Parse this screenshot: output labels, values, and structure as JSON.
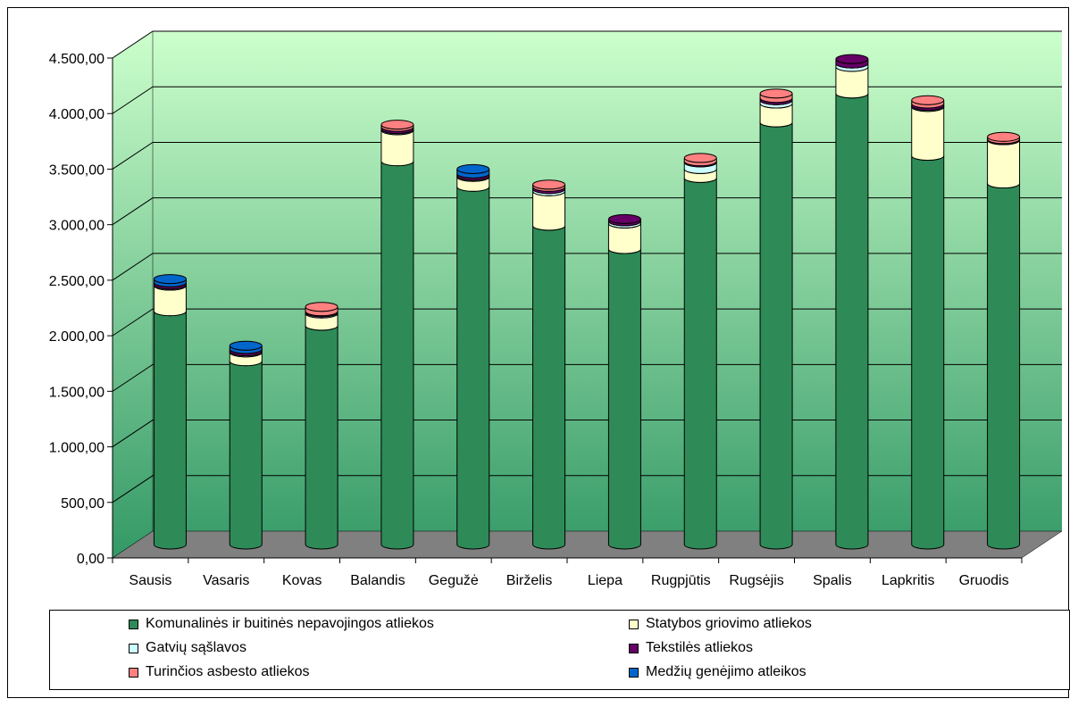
{
  "chart_data": {
    "type": "bar",
    "stacked": true,
    "three_d": true,
    "categories": [
      "Sausis",
      "Vasaris",
      "Kovas",
      "Balandis",
      "Gegužė",
      "Birželis",
      "Liepa",
      "Rugpjūtis",
      "Rugsėjis",
      "Spalis",
      "Lapkritis",
      "Gruodis"
    ],
    "series": [
      {
        "name": "Komunalinės ir buitinės nepavojingos atliekos",
        "color": "#2e8b57",
        "values": [
          2100,
          1650,
          1970,
          3450,
          3220,
          2870,
          2660,
          3300,
          3800,
          4060,
          3500,
          3250
        ]
      },
      {
        "name": "Statybos griovimo atliekos",
        "color": "#ffffcc",
        "values": [
          230,
          80,
          110,
          280,
          90,
          310,
          230,
          80,
          170,
          240,
          440,
          390
        ]
      },
      {
        "name": "Gatvių sąšlavos",
        "color": "#ccffff",
        "values": [
          10,
          10,
          10,
          10,
          10,
          20,
          20,
          60,
          30,
          30,
          10,
          0
        ]
      },
      {
        "name": "Tekstilės atliekos",
        "color": "#660066",
        "values": [
          20,
          20,
          10,
          20,
          20,
          20,
          20,
          10,
          20,
          40,
          20,
          10
        ]
      },
      {
        "name": "Turinčios asbesto atliekos",
        "color": "#ff8080",
        "values": [
          0,
          0,
          40,
          20,
          0,
          20,
          0,
          30,
          40,
          0,
          30,
          20
        ]
      },
      {
        "name": "Medžių genėjimo atleikos",
        "color": "#0066cc",
        "values": [
          30,
          30,
          0,
          0,
          40,
          0,
          0,
          0,
          0,
          0,
          0,
          0
        ]
      }
    ],
    "yticks": [
      "0,00",
      "500,00",
      "1.000,00",
      "1.500,00",
      "2.000,00",
      "2.500,00",
      "3.000,00",
      "3.500,00",
      "4.000,00",
      "4.500,00"
    ],
    "ylim": [
      0,
      4500
    ],
    "grid": true,
    "legend_position": "bottom",
    "title": "",
    "xlabel": "",
    "ylabel": ""
  },
  "colors": {
    "wall_top": "#ccffcc",
    "wall_bottom": "#339966",
    "floor": "#808080"
  }
}
